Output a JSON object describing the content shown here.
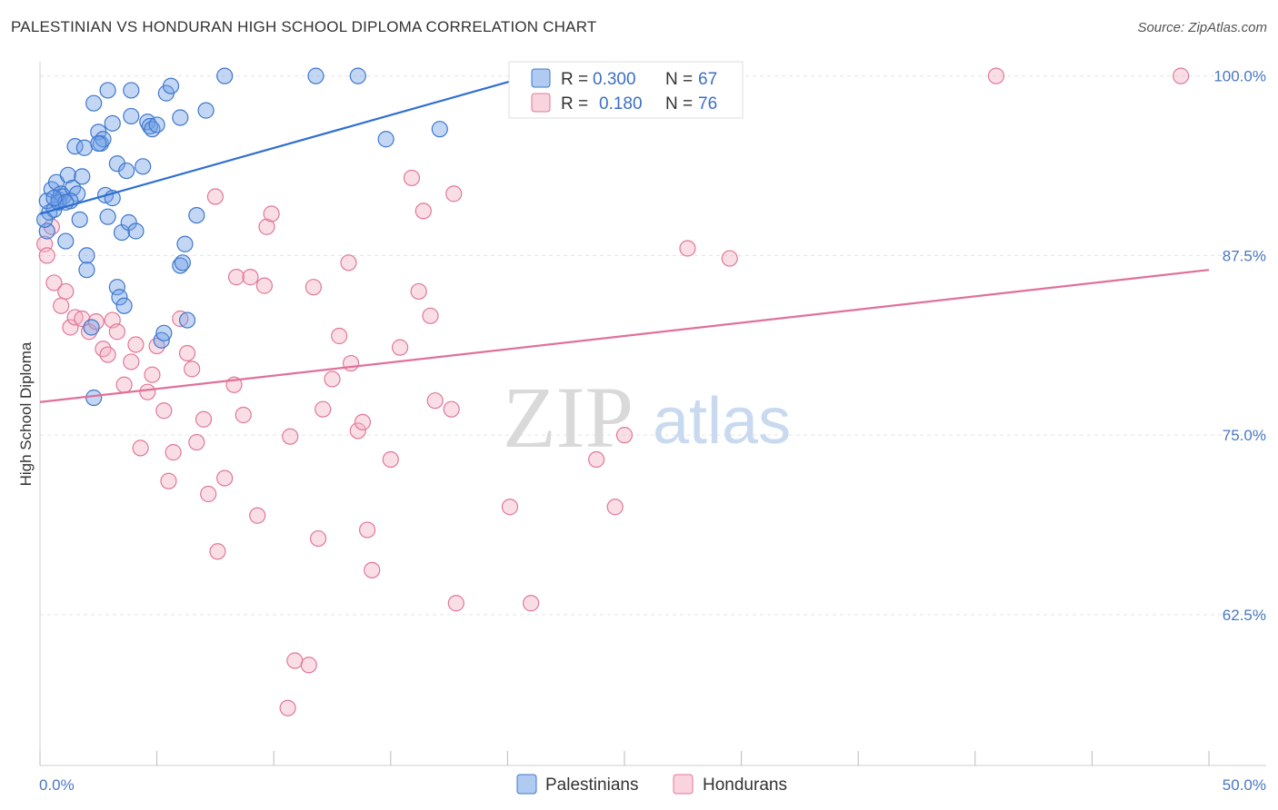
{
  "header": {
    "title": "PALESTINIAN VS HONDURAN HIGH SCHOOL DIPLOMA CORRELATION CHART",
    "source": "Source: ZipAtlas.com"
  },
  "watermark": {
    "zip": "ZIP",
    "atlas": "atlas"
  },
  "legend": {
    "rows": [
      {
        "r_label": "R =",
        "r_value": "0.300",
        "n_label": "N =",
        "n_value": "67",
        "color": "#6fa0e6"
      },
      {
        "r_label": "R =",
        "r_value": "0.180",
        "n_label": "N =",
        "n_value": "76",
        "color": "#f0a0b8"
      }
    ]
  },
  "chart_data": {
    "type": "scatter",
    "xlabel": "",
    "ylabel": "High School Diploma",
    "xlim": [
      0,
      50
    ],
    "ylim": [
      52,
      102
    ],
    "x_tick_labels": [
      "0.0%",
      "50.0%"
    ],
    "y_ticks": [
      62.5,
      75.0,
      87.5,
      100.0
    ],
    "y_tick_labels": [
      "62.5%",
      "75.0%",
      "87.5%",
      "100.0%"
    ],
    "grid": true,
    "legend_position": "top-center",
    "series": [
      {
        "name": "Palestinians",
        "color": "#6fa0e6",
        "stroke": "#3f77cc",
        "trend": {
          "x": [
            0,
            20.5
          ],
          "y": [
            90.4,
            99.8
          ]
        },
        "points": [
          [
            0.3,
            89.2
          ],
          [
            0.4,
            90.5
          ],
          [
            0.3,
            91.3
          ],
          [
            0.5,
            92.1
          ],
          [
            0.6,
            90.7
          ],
          [
            0.7,
            92.6
          ],
          [
            0.8,
            91.4
          ],
          [
            0.9,
            91.8
          ],
          [
            1.0,
            91.6
          ],
          [
            1.1,
            88.5
          ],
          [
            1.2,
            93.1
          ],
          [
            1.4,
            92.2
          ],
          [
            1.5,
            95.1
          ],
          [
            1.6,
            91.8
          ],
          [
            1.7,
            90.0
          ],
          [
            1.8,
            93.0
          ],
          [
            1.9,
            95.0
          ],
          [
            2.0,
            87.5
          ],
          [
            2.0,
            86.5
          ],
          [
            2.2,
            82.5
          ],
          [
            2.3,
            77.6
          ],
          [
            2.3,
            98.1
          ],
          [
            2.5,
            96.1
          ],
          [
            2.6,
            95.3
          ],
          [
            2.7,
            95.6
          ],
          [
            2.8,
            91.7
          ],
          [
            2.9,
            90.2
          ],
          [
            2.9,
            99.0
          ],
          [
            3.1,
            91.5
          ],
          [
            3.1,
            96.7
          ],
          [
            3.3,
            93.9
          ],
          [
            3.3,
            85.3
          ],
          [
            3.4,
            84.6
          ],
          [
            3.5,
            89.1
          ],
          [
            3.6,
            84.0
          ],
          [
            3.7,
            93.4
          ],
          [
            3.8,
            89.8
          ],
          [
            3.9,
            97.2
          ],
          [
            3.9,
            99.0
          ],
          [
            4.1,
            89.2
          ],
          [
            4.4,
            93.7
          ],
          [
            4.6,
            96.8
          ],
          [
            4.7,
            96.5
          ],
          [
            4.8,
            96.3
          ],
          [
            5.0,
            96.6
          ],
          [
            5.2,
            81.6
          ],
          [
            5.3,
            82.1
          ],
          [
            5.4,
            98.8
          ],
          [
            5.6,
            99.3
          ],
          [
            6.0,
            86.8
          ],
          [
            6.0,
            97.1
          ],
          [
            6.1,
            87.0
          ],
          [
            6.2,
            88.3
          ],
          [
            6.3,
            83.0
          ],
          [
            6.7,
            90.3
          ],
          [
            7.1,
            97.6
          ],
          [
            7.9,
            100.0
          ],
          [
            11.8,
            100.0
          ],
          [
            13.6,
            100.0
          ],
          [
            14.8,
            95.6
          ],
          [
            17.1,
            96.3
          ],
          [
            0.2,
            90.0
          ],
          [
            0.8,
            91.2
          ],
          [
            1.3,
            91.3
          ],
          [
            2.5,
            95.3
          ],
          [
            1.1,
            91.2
          ],
          [
            0.6,
            91.5
          ]
        ]
      },
      {
        "name": "Hondurans",
        "color": "#f4b0c4",
        "stroke": "#e07898",
        "trend": {
          "x": [
            0,
            50
          ],
          "y": [
            77.3,
            86.5
          ]
        },
        "points": [
          [
            0.2,
            88.3
          ],
          [
            0.3,
            87.5
          ],
          [
            0.5,
            89.5
          ],
          [
            0.6,
            85.6
          ],
          [
            0.9,
            84.0
          ],
          [
            1.1,
            85.0
          ],
          [
            1.3,
            82.5
          ],
          [
            1.5,
            83.2
          ],
          [
            1.8,
            83.1
          ],
          [
            2.1,
            82.2
          ],
          [
            2.4,
            82.9
          ],
          [
            2.7,
            81.0
          ],
          [
            2.9,
            80.6
          ],
          [
            3.1,
            83.0
          ],
          [
            3.3,
            82.2
          ],
          [
            3.6,
            78.5
          ],
          [
            3.9,
            80.1
          ],
          [
            4.1,
            81.3
          ],
          [
            4.3,
            74.1
          ],
          [
            4.6,
            78.0
          ],
          [
            4.8,
            79.2
          ],
          [
            5.0,
            81.2
          ],
          [
            5.3,
            76.7
          ],
          [
            5.5,
            71.8
          ],
          [
            5.7,
            73.8
          ],
          [
            6.0,
            83.1
          ],
          [
            6.3,
            80.7
          ],
          [
            6.5,
            79.6
          ],
          [
            6.7,
            74.5
          ],
          [
            7.0,
            76.1
          ],
          [
            7.2,
            70.9
          ],
          [
            7.5,
            91.6
          ],
          [
            7.6,
            66.9
          ],
          [
            7.9,
            72.0
          ],
          [
            8.3,
            78.5
          ],
          [
            8.4,
            86.0
          ],
          [
            8.7,
            76.4
          ],
          [
            9.0,
            86.0
          ],
          [
            9.3,
            69.4
          ],
          [
            9.6,
            85.4
          ],
          [
            9.7,
            89.5
          ],
          [
            9.9,
            90.4
          ],
          [
            10.7,
            74.9
          ],
          [
            10.9,
            59.3
          ],
          [
            10.6,
            56.0
          ],
          [
            11.5,
            59.0
          ],
          [
            11.7,
            85.3
          ],
          [
            11.9,
            67.8
          ],
          [
            12.1,
            76.8
          ],
          [
            12.5,
            78.9
          ],
          [
            12.8,
            81.9
          ],
          [
            13.2,
            87.0
          ],
          [
            13.3,
            80.0
          ],
          [
            13.6,
            75.3
          ],
          [
            13.8,
            75.9
          ],
          [
            14.0,
            68.4
          ],
          [
            14.2,
            65.6
          ],
          [
            15.0,
            73.3
          ],
          [
            15.4,
            81.1
          ],
          [
            15.9,
            92.9
          ],
          [
            16.2,
            85.0
          ],
          [
            16.4,
            90.6
          ],
          [
            16.7,
            83.3
          ],
          [
            16.9,
            77.4
          ],
          [
            17.6,
            76.8
          ],
          [
            17.7,
            91.8
          ],
          [
            17.8,
            63.3
          ],
          [
            20.1,
            70.0
          ],
          [
            21.0,
            63.3
          ],
          [
            23.8,
            73.3
          ],
          [
            24.6,
            70.0
          ],
          [
            25.0,
            75.0
          ],
          [
            27.7,
            88.0
          ],
          [
            29.5,
            87.3
          ],
          [
            40.9,
            100.0
          ],
          [
            48.8,
            100.0
          ]
        ]
      }
    ]
  }
}
